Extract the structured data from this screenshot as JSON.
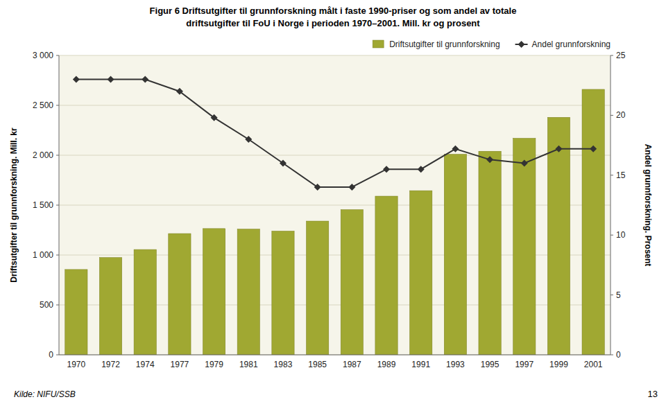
{
  "chart_data": {
    "type": "bar",
    "title": "Figur 6   Driftsutgifter til grunnforskning målt i faste 1990-priser og som andel av totale",
    "subtitle": "driftsutgifter til FoU i Norge i perioden 1970–2001. Mill. kr og prosent",
    "ylabel": "Driftsutgifter til grunnforskning. Mill. kr",
    "y2label": "Andel grunnforskning. Prosent",
    "annotations": [
      "Kilde: NIFU/SSB",
      "13"
    ],
    "categories": [
      "1970",
      "1972",
      "1974",
      "1977",
      "1979",
      "1981",
      "1983",
      "1985",
      "1987",
      "1989",
      "1991",
      "1993",
      "1995",
      "1997",
      "1999",
      "2001"
    ],
    "series": [
      {
        "name": "Driftsutgifter til grunnforskning",
        "type": "bar",
        "color": "#a0a832",
        "values": [
          855,
          975,
          1055,
          1215,
          1265,
          1260,
          1240,
          1340,
          1455,
          1590,
          1645,
          2010,
          2040,
          2170,
          2380,
          2660
        ]
      },
      {
        "name": "Andel grunnforskning",
        "type": "line",
        "axis": "y2",
        "color": "#333333",
        "marker": "diamond",
        "values": [
          23.0,
          23.0,
          23.0,
          22.0,
          19.8,
          18.0,
          16.0,
          14.0,
          14.0,
          15.5,
          15.5,
          17.2,
          16.3,
          16.0,
          17.2,
          17.2
        ]
      }
    ],
    "ylim": [
      0,
      3000
    ],
    "yticks": [
      0,
      500,
      {
        "value": 1000,
        "label": "1 000"
      },
      {
        "value": 1500,
        "label": "1 500"
      },
      {
        "value": 2000,
        "label": "2 000"
      },
      {
        "value": 2500,
        "label": "2 500"
      },
      {
        "value": 3000,
        "label": "3 000"
      }
    ],
    "y2lim": [
      0,
      25
    ],
    "y2ticks": [
      0,
      5,
      10,
      15,
      20,
      25
    ],
    "grid": true,
    "legend": "upper-right"
  }
}
